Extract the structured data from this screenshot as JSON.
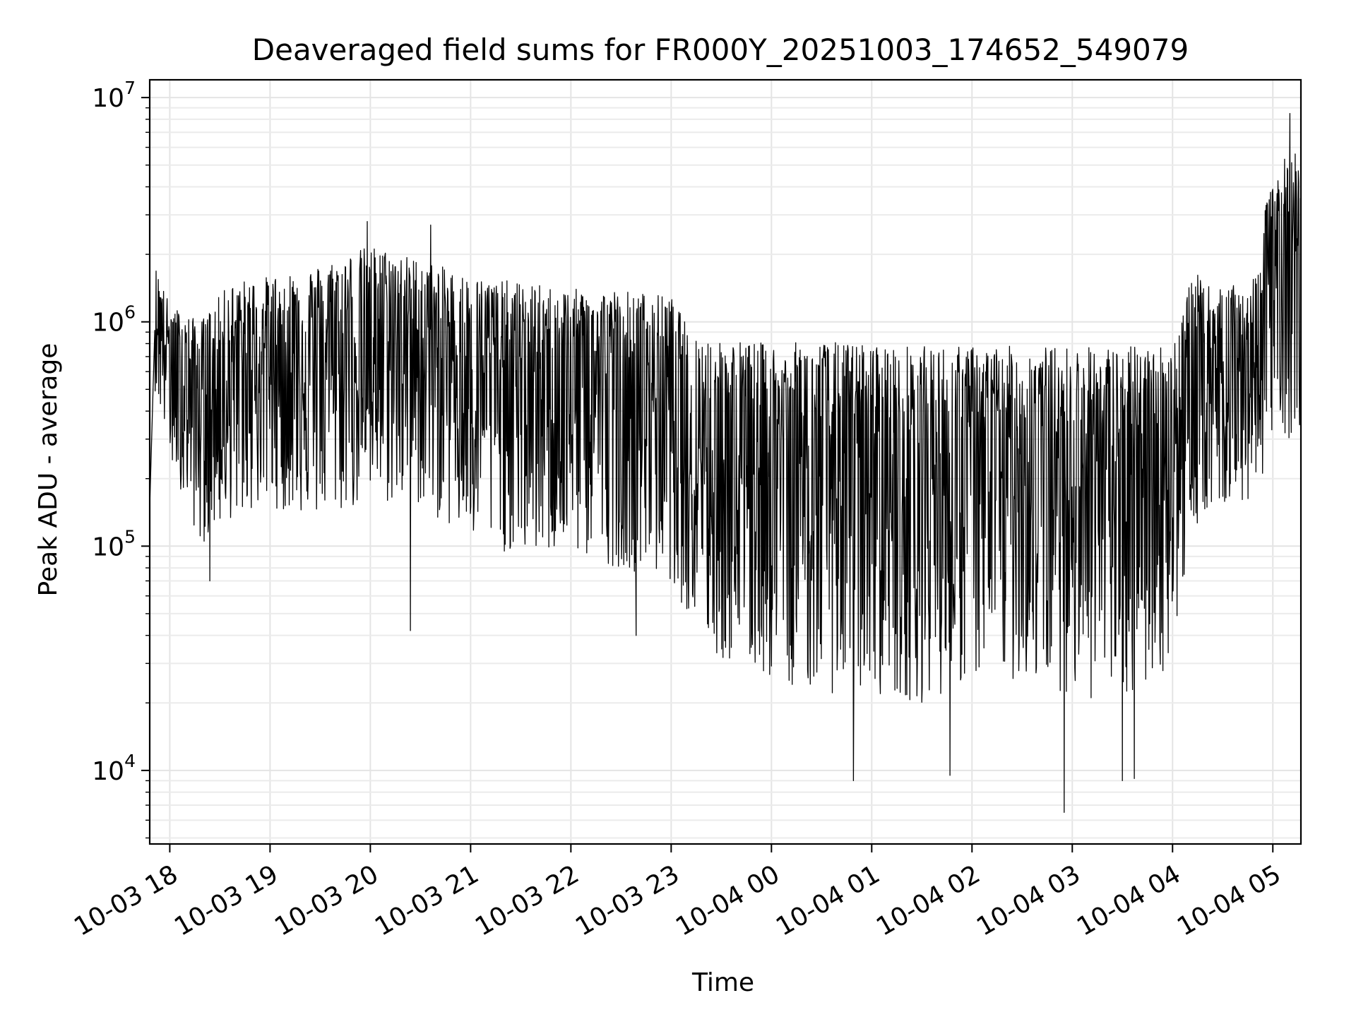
{
  "chart_data": {
    "type": "line",
    "title": "Deaveraged field sums for FR000Y_20251003_174652_549079",
    "xlabel": "Time",
    "ylabel": "Peak ADU - average",
    "yscale": "log",
    "ylim": [
      4700,
      12000000
    ],
    "xlim_hours": [
      -0.2,
      11.28
    ],
    "x_ticks": [
      {
        "hour": 0,
        "label": "10-03 18"
      },
      {
        "hour": 1,
        "label": "10-03 19"
      },
      {
        "hour": 2,
        "label": "10-03 20"
      },
      {
        "hour": 3,
        "label": "10-03 21"
      },
      {
        "hour": 4,
        "label": "10-03 22"
      },
      {
        "hour": 5,
        "label": "10-03 23"
      },
      {
        "hour": 6,
        "label": "10-04 00"
      },
      {
        "hour": 7,
        "label": "10-04 01"
      },
      {
        "hour": 8,
        "label": "10-04 02"
      },
      {
        "hour": 9,
        "label": "10-04 03"
      },
      {
        "hour": 10,
        "label": "10-04 04"
      },
      {
        "hour": 11,
        "label": "10-04 05"
      }
    ],
    "y_ticks": [
      {
        "value": 10000,
        "base": "10",
        "exp": "4"
      },
      {
        "value": 100000,
        "base": "10",
        "exp": "5"
      },
      {
        "value": 1000000,
        "base": "10",
        "exp": "6"
      },
      {
        "value": 10000000,
        "base": "10",
        "exp": "7"
      }
    ],
    "grid": true,
    "series": [
      {
        "name": "Peak ADU - average",
        "color": "#000000",
        "note": "dense noisy series; envelope of per-window max/min in data units, sampled from the figure",
        "envelope": {
          "hours": [
            -0.2,
            -0.15,
            0.0,
            0.3,
            0.6,
            1.0,
            1.5,
            2.0,
            2.5,
            3.0,
            3.5,
            4.0,
            4.5,
            5.0,
            5.2,
            5.5,
            6.0,
            6.5,
            7.0,
            7.5,
            8.0,
            8.5,
            9.0,
            9.5,
            10.0,
            10.2,
            10.4,
            10.8,
            11.0,
            11.28
          ],
          "upper": [
            150000,
            1800000,
            1200000,
            1000000,
            1500000,
            1600000,
            1800000,
            2200000,
            1900000,
            1600000,
            1500000,
            1400000,
            1400000,
            1300000,
            900000,
            850000,
            800000,
            820000,
            800000,
            780000,
            780000,
            780000,
            780000,
            780000,
            800000,
            1700000,
            1400000,
            1500000,
            5000000,
            6000000
          ],
          "lower": [
            150000,
            500000,
            250000,
            100000,
            130000,
            150000,
            130000,
            150000,
            150000,
            100000,
            90000,
            90000,
            80000,
            70000,
            45000,
            30000,
            25000,
            22000,
            22000,
            20000,
            25000,
            25000,
            22000,
            18000,
            30000,
            120000,
            150000,
            150000,
            300000,
            300000
          ]
        },
        "extremes": [
          {
            "hour": 11.17,
            "value": 8500000
          },
          {
            "hour": 1.97,
            "value": 2800000
          },
          {
            "hour": 2.6,
            "value": 2700000
          },
          {
            "hour": 0.4,
            "value": 70000
          },
          {
            "hour": 2.4,
            "value": 42000
          },
          {
            "hour": 4.65,
            "value": 40000
          },
          {
            "hour": 6.82,
            "value": 9000
          },
          {
            "hour": 7.78,
            "value": 9500
          },
          {
            "hour": 8.92,
            "value": 6500
          },
          {
            "hour": 9.5,
            "value": 9000
          },
          {
            "hour": 9.62,
            "value": 9200
          }
        ]
      }
    ]
  }
}
